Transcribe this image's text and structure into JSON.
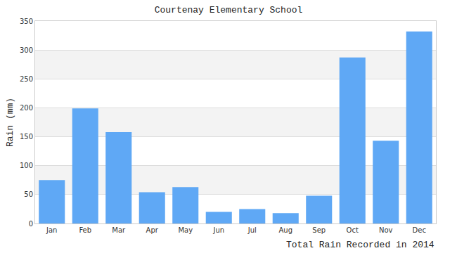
{
  "chart_data": {
    "type": "bar",
    "title": "Courtenay Elementary School",
    "y_label": "Rain (mm)",
    "x_label": "Total Rain Recorded in 2014",
    "categories": [
      "Jan",
      "Feb",
      "Mar",
      "Apr",
      "May",
      "Jun",
      "Jul",
      "Aug",
      "Sep",
      "Oct",
      "Nov",
      "Dec"
    ],
    "values": [
      75,
      199,
      158,
      54,
      63,
      20,
      25,
      18,
      48,
      287,
      143,
      332
    ],
    "color": "#5fa8f5",
    "ylim": [
      0,
      350
    ],
    "yticks": [
      0,
      50,
      100,
      150,
      200,
      250,
      300,
      350
    ],
    "grid": true
  }
}
